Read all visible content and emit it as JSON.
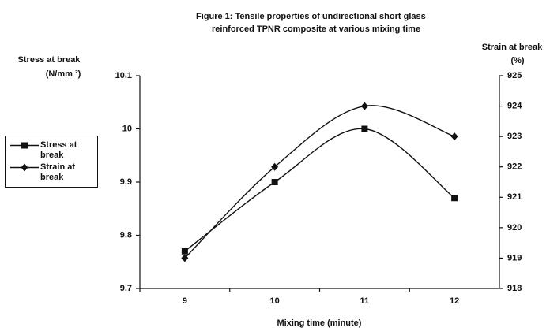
{
  "chart_data": {
    "type": "line",
    "title": [
      "Figure 1: Tensile properties of undirectional short glass",
      "reinforced TPNR composite at various mixing time"
    ],
    "y_label": [
      "Stress at break",
      "(N/mm ²)"
    ],
    "y2_label": [
      "Strain at break",
      "(%)"
    ],
    "x_label": "Mixing time (minute)",
    "categories": [
      "9",
      "10",
      "11",
      "12"
    ],
    "series": [
      {
        "name": "Stress at break",
        "color": "#111111",
        "marker": "square",
        "values": [
          9.77,
          9.9,
          10.0,
          9.87
        ]
      },
      {
        "name": "Strain at break",
        "color": "#111111",
        "marker": "diamond",
        "axis": "y2",
        "values": [
          919,
          922,
          924,
          923
        ]
      }
    ],
    "ylim": [
      9.7,
      10.1
    ],
    "yticks": [
      9.7,
      9.8,
      9.9,
      10,
      10.1
    ],
    "y2lim": [
      918,
      925
    ],
    "y2ticks": [
      918,
      919,
      920,
      921,
      922,
      923,
      924,
      925
    ],
    "legend": "left"
  }
}
